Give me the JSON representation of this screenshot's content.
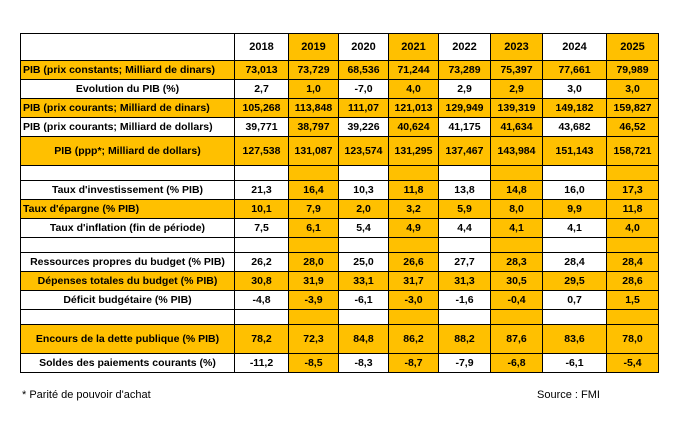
{
  "years": [
    "2018",
    "2019",
    "2020",
    "2021",
    "2022",
    "2023",
    "2024",
    "2025"
  ],
  "rows": [
    {
      "label": "PIB (prix constants; Milliard de dinars)",
      "values": [
        "73,013",
        "73,729",
        "68,536",
        "71,244",
        "73,289",
        "75,397",
        "77,661",
        "79,989"
      ]
    },
    {
      "label": "Evolution du PIB (%)",
      "values": [
        "2,7",
        "1,0",
        "-7,0",
        "4,0",
        "2,9",
        "2,9",
        "3,0",
        "3,0"
      ]
    },
    {
      "label": "PIB (prix courants; Milliard de dinars)",
      "values": [
        "105,268",
        "113,848",
        "111,07",
        "121,013",
        "129,949",
        "139,319",
        "149,182",
        "159,827"
      ]
    },
    {
      "label": "PIB (prix courants; Milliard de dollars)",
      "values": [
        "39,771",
        "38,797",
        "39,226",
        "40,624",
        "41,175",
        "41,634",
        "43,682",
        "46,52"
      ]
    },
    {
      "label": "PIB (ppp*; Milliard de dollars)",
      "values": [
        "127,538",
        "131,087",
        "123,574",
        "131,295",
        "137,467",
        "143,984",
        "151,143",
        "158,721"
      ]
    },
    {
      "label": "Taux d'investissement (% PIB)",
      "values": [
        "21,3",
        "16,4",
        "10,3",
        "11,8",
        "13,8",
        "14,8",
        "16,0",
        "17,3"
      ]
    },
    {
      "label": "Taux d'épargne (% PIB)",
      "values": [
        "10,1",
        "7,9",
        "2,0",
        "3,2",
        "5,9",
        "8,0",
        "9,9",
        "11,8"
      ]
    },
    {
      "label": "Taux d'inflation (fin de période)",
      "values": [
        "7,5",
        "6,1",
        "5,4",
        "4,9",
        "4,4",
        "4,1",
        "4,1",
        "4,0"
      ]
    },
    {
      "label": "Ressources propres du budget (% PIB)",
      "values": [
        "26,2",
        "28,0",
        "25,0",
        "26,6",
        "27,7",
        "28,3",
        "28,4",
        "28,4"
      ]
    },
    {
      "label": "Dépenses totales du budget (% PIB)",
      "values": [
        "30,8",
        "31,9",
        "33,1",
        "31,7",
        "31,3",
        "30,5",
        "29,5",
        "28,6"
      ]
    },
    {
      "label": "Déficit budgétaire (% PIB)",
      "values": [
        "-4,8",
        "-3,9",
        "-6,1",
        "-3,0",
        "-1,6",
        "-0,4",
        "0,7",
        "1,5"
      ]
    },
    {
      "label": "Encours de la dette publique (% PIB)",
      "values": [
        "78,2",
        "72,3",
        "84,8",
        "86,2",
        "88,2",
        "87,6",
        "83,6",
        "78,0"
      ]
    },
    {
      "label": "Soldes des paiements courants (%)",
      "values": [
        "-11,2",
        "-8,5",
        "-8,3",
        "-8,7",
        "-7,9",
        "-6,8",
        "-6,1",
        "-5,4"
      ]
    }
  ],
  "footnote": "* Parité de pouvoir d'achat",
  "source": "Source : FMI",
  "colors": {
    "highlight": "#FFC000"
  }
}
